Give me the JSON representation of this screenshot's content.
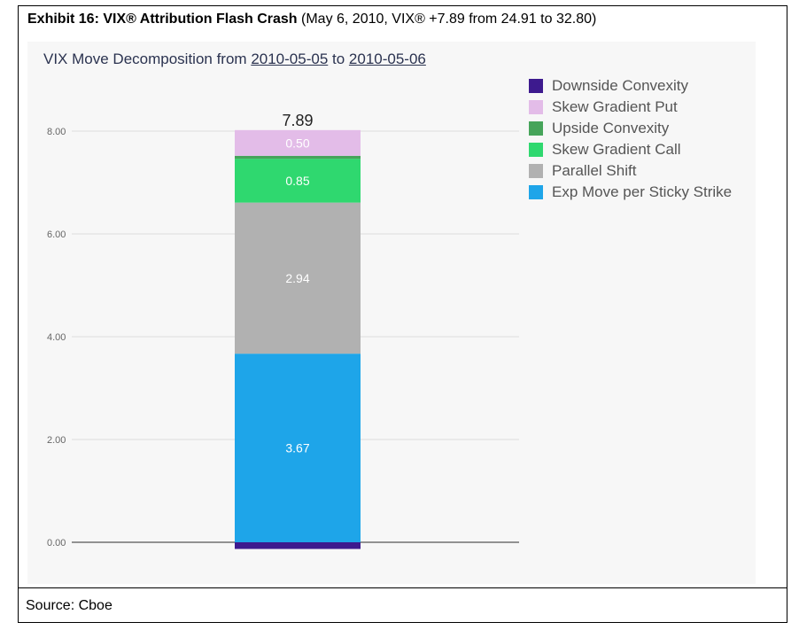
{
  "exhibit": {
    "title_bold": "Exhibit 16: VIX® Attribution Flash Crash",
    "title_rest": " (May 6, 2010, VIX® +7.89 from 24.91 to 32.80)"
  },
  "source": "Source: Cboe",
  "chart_title": {
    "prefix": "VIX Move Decomposition from ",
    "start_date": "2010-05-05",
    "middle": " to ",
    "end_date": "2010-05-06"
  },
  "chart_data": {
    "type": "bar",
    "stacked": true,
    "ylim": [
      -0.15,
      8.6
    ],
    "yticks": [
      0,
      2,
      4,
      6,
      8
    ],
    "ytick_labels": [
      "0.00",
      "2.00",
      "4.00",
      "6.00",
      "8.00"
    ],
    "total_label": "7.89",
    "grid": true,
    "legend_position": "top-right",
    "series": [
      {
        "name": "Downside Convexity",
        "value": -0.13,
        "color": "#3d1a8e",
        "label": ""
      },
      {
        "name": "Exp Move per Sticky Strike",
        "value": 3.67,
        "color": "#1ea5e9",
        "label": "3.67"
      },
      {
        "name": "Parallel Shift",
        "value": 2.94,
        "color": "#b1b1b1",
        "label": "2.94"
      },
      {
        "name": "Skew Gradient Call",
        "value": 0.85,
        "color": "#2fd86f",
        "label": "0.85"
      },
      {
        "name": "Upside Convexity",
        "value": 0.06,
        "color": "#46a45a",
        "label": ""
      },
      {
        "name": "Skew Gradient Put",
        "value": 0.5,
        "color": "#e3bce8",
        "label": "0.50"
      }
    ],
    "legend_order": [
      "Downside Convexity",
      "Skew Gradient Put",
      "Upside Convexity",
      "Skew Gradient Call",
      "Parallel Shift",
      "Exp Move per Sticky Strike"
    ]
  }
}
